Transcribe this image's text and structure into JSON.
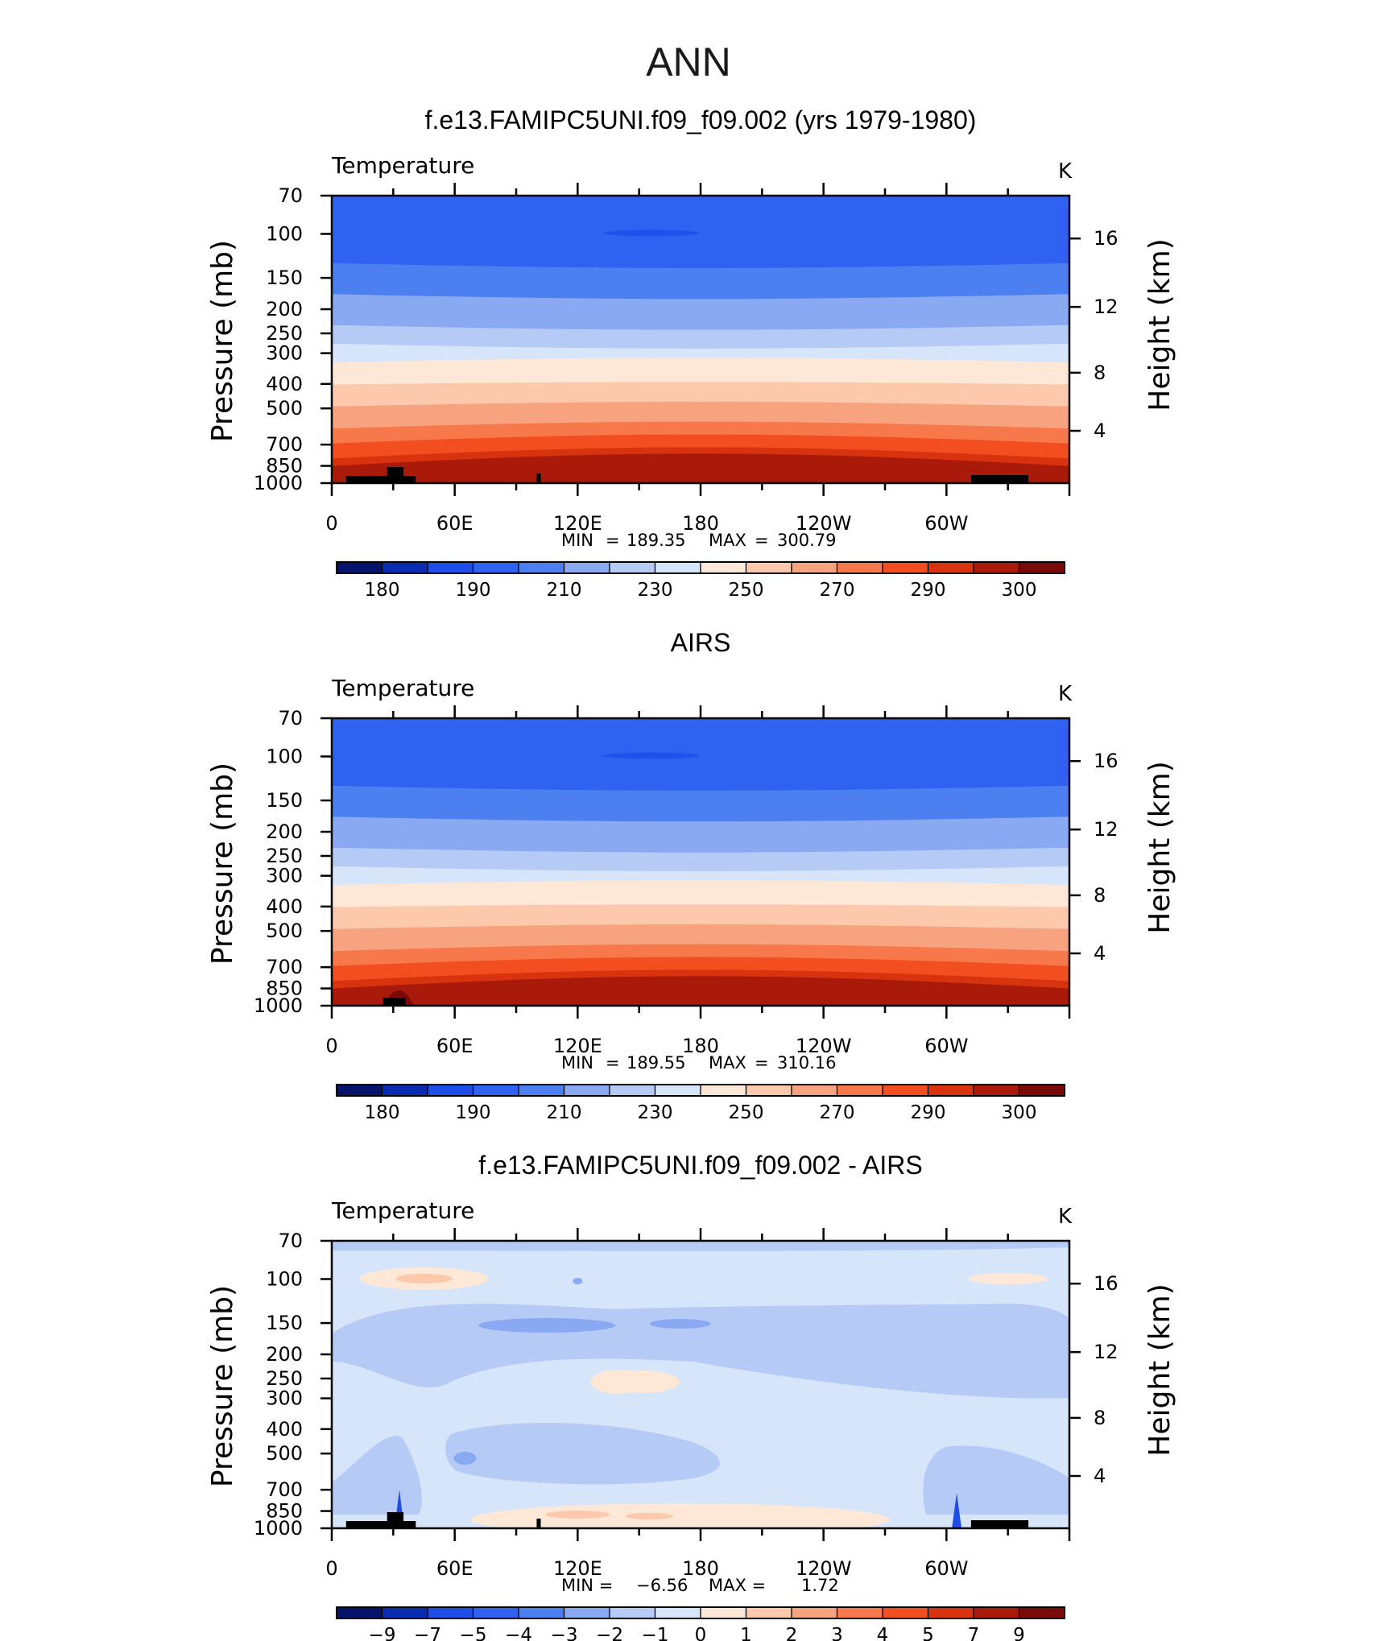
{
  "figure_title": "ANN",
  "colors": {
    "temperature_scale": [
      "#06136b",
      "#0a2cb0",
      "#1e4de8",
      "#2f62f0",
      "#4c7ff0",
      "#8aa9f3",
      "#b6caf6",
      "#d6e5fa",
      "#fde8d8",
      "#fcc9ad",
      "#f7a37f",
      "#f7784b",
      "#f24e1f",
      "#d8330f",
      "#aa1a0b",
      "#7a0a08"
    ],
    "difference_scale": [
      "#06136b",
      "#0a2cb0",
      "#1e4de8",
      "#2f62f0",
      "#4c7ff0",
      "#8aa9f3",
      "#b6caf6",
      "#d6e5fa",
      "#fde8d8",
      "#fcc9ad",
      "#f7a37f",
      "#f7784b",
      "#f24e1f",
      "#d8330f",
      "#aa1a0b",
      "#7a0a08"
    ],
    "topography": "#000000"
  },
  "chart_data": [
    {
      "type": "heatmap",
      "title": "f.e13.FAMIPC5UNI.f09_f09.002 (yrs 1979-1980)",
      "variable_label": "Temperature",
      "units": "K",
      "ylabel": "Pressure (mb)",
      "ylabel_right": "Height (km)",
      "y_ticks": [
        "70",
        "100",
        "150",
        "200",
        "250",
        "300",
        "400",
        "500",
        "700",
        "850",
        "1000"
      ],
      "y_ticks_right": [
        "16",
        "12",
        "8",
        "4"
      ],
      "x_tick_labels": [
        "0",
        "60E",
        "120E",
        "180",
        "120W",
        "60W"
      ],
      "min_label": "MIN",
      "min_value": "189.35",
      "max_label": "MAX",
      "max_value": "300.79",
      "colorbar_labels": [
        "180",
        "190",
        "210",
        "230",
        "250",
        "270",
        "290",
        "300"
      ],
      "pattern": "temperature",
      "layers": [
        {
          "value": 195,
          "color_index": 3
        },
        {
          "value": 200,
          "color_index": 4
        },
        {
          "value": 210,
          "color_index": 5
        },
        {
          "value": 220,
          "color_index": 6
        },
        {
          "value": 230,
          "color_index": 7
        },
        {
          "value": 240,
          "color_index": 8
        },
        {
          "value": 250,
          "color_index": 9
        },
        {
          "value": 260,
          "color_index": 10
        },
        {
          "value": 270,
          "color_index": 11
        },
        {
          "value": 280,
          "color_index": 12
        },
        {
          "value": 290,
          "color_index": 13
        },
        {
          "value": 295,
          "color_index": 14
        }
      ]
    },
    {
      "type": "heatmap",
      "title": "AIRS",
      "variable_label": "Temperature",
      "units": "K",
      "ylabel": "Pressure (mb)",
      "ylabel_right": "Height (km)",
      "y_ticks": [
        "70",
        "100",
        "150",
        "200",
        "250",
        "300",
        "400",
        "500",
        "700",
        "850",
        "1000"
      ],
      "y_ticks_right": [
        "16",
        "12",
        "8",
        "4"
      ],
      "x_tick_labels": [
        "0",
        "60E",
        "120E",
        "180",
        "120W",
        "60W"
      ],
      "min_label": "MIN",
      "min_value": "189.55",
      "max_label": "MAX",
      "max_value": "310.16",
      "colorbar_labels": [
        "180",
        "190",
        "210",
        "230",
        "250",
        "270",
        "290",
        "300"
      ],
      "pattern": "temperature",
      "layers": [
        {
          "value": 195,
          "color_index": 3
        },
        {
          "value": 200,
          "color_index": 4
        },
        {
          "value": 210,
          "color_index": 5
        },
        {
          "value": 220,
          "color_index": 6
        },
        {
          "value": 230,
          "color_index": 7
        },
        {
          "value": 240,
          "color_index": 8
        },
        {
          "value": 250,
          "color_index": 9
        },
        {
          "value": 260,
          "color_index": 10
        },
        {
          "value": 270,
          "color_index": 11
        },
        {
          "value": 280,
          "color_index": 12
        },
        {
          "value": 290,
          "color_index": 13
        },
        {
          "value": 295,
          "color_index": 14
        }
      ]
    },
    {
      "type": "heatmap",
      "title": "f.e13.FAMIPC5UNI.f09_f09.002 - AIRS",
      "variable_label": "Temperature",
      "units": "K",
      "ylabel": "Pressure (mb)",
      "ylabel_right": "Height (km)",
      "y_ticks": [
        "70",
        "100",
        "150",
        "200",
        "250",
        "300",
        "400",
        "500",
        "700",
        "850",
        "1000"
      ],
      "y_ticks_right": [
        "16",
        "12",
        "8",
        "4"
      ],
      "x_tick_labels": [
        "0",
        "60E",
        "120E",
        "180",
        "120W",
        "60W"
      ],
      "min_label": "MIN =",
      "min_value": "−6.56",
      "max_label": "MAX =",
      "max_value": "1.72",
      "colorbar_labels": [
        "−9",
        "−7",
        "−5",
        "−4",
        "−3",
        "−2",
        "−1",
        "0",
        "1",
        "2",
        "3",
        "4",
        "5",
        "7",
        "9"
      ],
      "pattern": "difference",
      "layers": []
    }
  ]
}
